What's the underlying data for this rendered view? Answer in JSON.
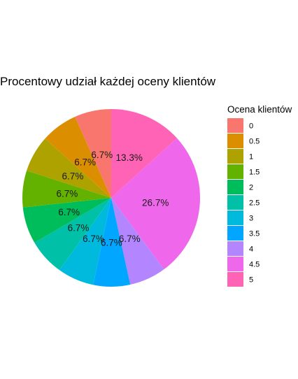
{
  "chart_data": {
    "type": "pie",
    "title": "Procentowy udział każdej oceny klientów",
    "legend_title": "Ocena klientów",
    "legend_position": "right",
    "categories": [
      "0",
      "0.5",
      "1",
      "1.5",
      "2",
      "2.5",
      "3",
      "3.5",
      "4",
      "4.5",
      "5"
    ],
    "values": [
      6.7,
      6.7,
      6.7,
      6.7,
      6.7,
      6.7,
      6.7,
      6.7,
      6.7,
      26.7,
      13.3
    ],
    "labels": [
      "6.7%",
      "6.7%",
      "6.7%",
      "6.7%",
      "6.7%",
      "6.7%",
      "6.7%",
      "6.7%",
      "6.7%",
      "26.7%",
      "13.3%"
    ],
    "colors": [
      "#F8766D",
      "#DB8E00",
      "#AEA200",
      "#64B200",
      "#00BD5C",
      "#00C1A7",
      "#00BADE",
      "#00A6FF",
      "#B385FF",
      "#EF67EB",
      "#FF63B6"
    ]
  }
}
